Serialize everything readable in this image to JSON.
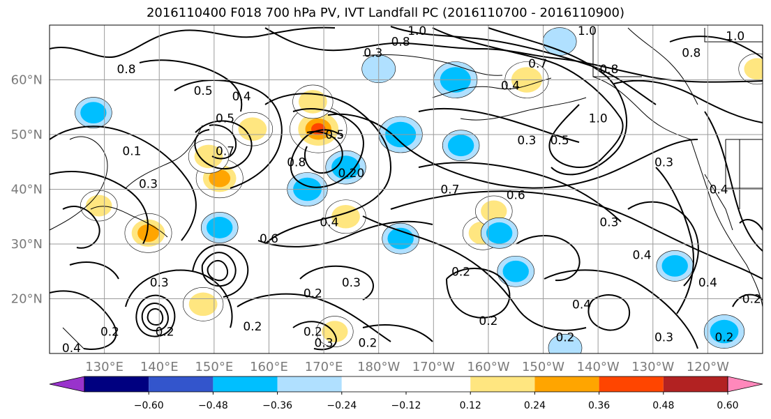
{
  "title": "2016110400 F018 700 hPa PV, IVT Landfall PC (2016110700 - 2016110900)",
  "map": {
    "lon_range": [
      120,
      250
    ],
    "lat_range": [
      10,
      70
    ],
    "lat_ticks": [
      {
        "value": 20,
        "label": "20°N"
      },
      {
        "value": 30,
        "label": "30°N"
      },
      {
        "value": 40,
        "label": "40°N"
      },
      {
        "value": 50,
        "label": "50°N"
      },
      {
        "value": 60,
        "label": "60°N"
      }
    ],
    "lon_ticks": [
      {
        "value": 130,
        "label": "130°E"
      },
      {
        "value": 140,
        "label": "140°E"
      },
      {
        "value": 150,
        "label": "150°E"
      },
      {
        "value": 160,
        "label": "160°E"
      },
      {
        "value": 170,
        "label": "170°E"
      },
      {
        "value": 180,
        "label": "180°W"
      },
      {
        "value": 190,
        "label": "170°W"
      },
      {
        "value": 200,
        "label": "160°W"
      },
      {
        "value": 210,
        "label": "150°W"
      },
      {
        "value": 220,
        "label": "140°W"
      },
      {
        "value": 230,
        "label": "130°W"
      },
      {
        "value": 240,
        "label": "120°W"
      }
    ],
    "gridlines": true,
    "contour_labels": [
      {
        "text": "0.8",
        "lon": 134,
        "lat": 62
      },
      {
        "text": "0.5",
        "lon": 148,
        "lat": 58
      },
      {
        "text": "0.4",
        "lon": 155,
        "lat": 57
      },
      {
        "text": "0.5",
        "lon": 152,
        "lat": 53
      },
      {
        "text": "0.1",
        "lon": 135,
        "lat": 47
      },
      {
        "text": "0.7",
        "lon": 152,
        "lat": 47
      },
      {
        "text": "0.3",
        "lon": 138,
        "lat": 41
      },
      {
        "text": "0.5",
        "lon": 172,
        "lat": 50
      },
      {
        "text": "0.8",
        "lon": 165,
        "lat": 45
      },
      {
        "text": "0.20",
        "lon": 175,
        "lat": 43
      },
      {
        "text": "1.0",
        "lon": 187,
        "lat": 69
      },
      {
        "text": "0.8",
        "lon": 184,
        "lat": 67
      },
      {
        "text": "0.3",
        "lon": 179,
        "lat": 65
      },
      {
        "text": "0.7",
        "lon": 209,
        "lat": 63
      },
      {
        "text": "0.4",
        "lon": 204,
        "lat": 59
      },
      {
        "text": "1.0",
        "lon": 218,
        "lat": 69
      },
      {
        "text": "0.8",
        "lon": 237,
        "lat": 65
      },
      {
        "text": "1.0",
        "lon": 245,
        "lat": 68
      },
      {
        "text": "0.8",
        "lon": 222,
        "lat": 62
      },
      {
        "text": "1.0",
        "lon": 220,
        "lat": 53
      },
      {
        "text": "0.5",
        "lon": 213,
        "lat": 49
      },
      {
        "text": "0.3",
        "lon": 207,
        "lat": 49
      },
      {
        "text": "0.3",
        "lon": 232,
        "lat": 45
      },
      {
        "text": "0.4",
        "lon": 242,
        "lat": 40
      },
      {
        "text": "0.7",
        "lon": 193,
        "lat": 40
      },
      {
        "text": "0.6",
        "lon": 205,
        "lat": 39
      },
      {
        "text": "0.4",
        "lon": 171,
        "lat": 34
      },
      {
        "text": "0.6",
        "lon": 160,
        "lat": 31
      },
      {
        "text": "0.3",
        "lon": 222,
        "lat": 34
      },
      {
        "text": "0.4",
        "lon": 228,
        "lat": 28
      },
      {
        "text": "0.4",
        "lon": 240,
        "lat": 23
      },
      {
        "text": "0.3",
        "lon": 140,
        "lat": 23
      },
      {
        "text": "0.2",
        "lon": 168,
        "lat": 21
      },
      {
        "text": "0.3",
        "lon": 175,
        "lat": 23
      },
      {
        "text": "0.2",
        "lon": 195,
        "lat": 25
      },
      {
        "text": "0.4",
        "lon": 217,
        "lat": 19
      },
      {
        "text": "0.2",
        "lon": 248,
        "lat": 20
      },
      {
        "text": "0.2",
        "lon": 131,
        "lat": 14
      },
      {
        "text": "0.2",
        "lon": 157,
        "lat": 15
      },
      {
        "text": "0.2",
        "lon": 168,
        "lat": 14
      },
      {
        "text": "0.3",
        "lon": 170,
        "lat": 12
      },
      {
        "text": "0.2",
        "lon": 178,
        "lat": 12
      },
      {
        "text": "0.2",
        "lon": 200,
        "lat": 16
      },
      {
        "text": "0.2",
        "lon": 214,
        "lat": 13
      },
      {
        "text": "0.3",
        "lon": 232,
        "lat": 13
      },
      {
        "text": "0.2",
        "lon": 243,
        "lat": 13
      },
      {
        "text": "0.4",
        "lon": 124,
        "lat": 11
      },
      {
        "text": "0.2",
        "lon": 141,
        "lat": 14
      }
    ]
  },
  "colorbar": {
    "colors": [
      "#9933cc",
      "#000080",
      "#3355cc",
      "#00bfff",
      "#b0e0ff",
      "#ffffff",
      "#ffffff",
      "#ffe680",
      "#ffa500",
      "#ff4500",
      "#b22222",
      "#ff88bb"
    ],
    "ticks": [
      "−0.60",
      "−0.48",
      "−0.36",
      "−0.24",
      "−0.12",
      "0.12",
      "0.24",
      "0.36",
      "0.48",
      "0.60"
    ]
  },
  "chart_data": {
    "type": "heatmap",
    "title": "2016110400 F018 700 hPa PV, IVT Landfall PC (2016110700 - 2016110900)",
    "xlabel": "",
    "ylabel": "",
    "xlim": [
      120,
      250
    ],
    "ylim": [
      10,
      70
    ],
    "color_levels": [
      -0.6,
      -0.48,
      -0.36,
      -0.24,
      -0.12,
      0.12,
      0.24,
      0.36,
      0.48,
      0.6
    ],
    "positive_anomalies": [
      {
        "lon": 169,
        "lat": 51,
        "value": 0.55
      },
      {
        "lon": 168,
        "lat": 56,
        "value": 0.3
      },
      {
        "lon": 151,
        "lat": 42,
        "value": 0.4
      },
      {
        "lon": 149,
        "lat": 46,
        "value": 0.3
      },
      {
        "lon": 138,
        "lat": 32,
        "value": 0.4
      },
      {
        "lon": 157,
        "lat": 51,
        "value": 0.3
      },
      {
        "lon": 207,
        "lat": 60,
        "value": 0.35
      },
      {
        "lon": 199,
        "lat": 32,
        "value": 0.3
      },
      {
        "lon": 174,
        "lat": 35,
        "value": 0.3
      },
      {
        "lon": 129,
        "lat": 37,
        "value": 0.25
      },
      {
        "lon": 148,
        "lat": 19,
        "value": 0.3
      },
      {
        "lon": 172,
        "lat": 14,
        "value": 0.25
      },
      {
        "lon": 201,
        "lat": 36,
        "value": 0.25
      },
      {
        "lon": 249,
        "lat": 62,
        "value": 0.25
      }
    ],
    "negative_anomalies": [
      {
        "lon": 184,
        "lat": 50,
        "value": -0.35
      },
      {
        "lon": 167,
        "lat": 40,
        "value": -0.3
      },
      {
        "lon": 174,
        "lat": 44,
        "value": -0.3
      },
      {
        "lon": 194,
        "lat": 60,
        "value": -0.35
      },
      {
        "lon": 195,
        "lat": 48,
        "value": -0.25
      },
      {
        "lon": 128,
        "lat": 54,
        "value": -0.25
      },
      {
        "lon": 151,
        "lat": 33,
        "value": -0.25
      },
      {
        "lon": 180,
        "lat": 62,
        "value": -0.2
      },
      {
        "lon": 184,
        "lat": 31,
        "value": -0.25
      },
      {
        "lon": 205,
        "lat": 25,
        "value": -0.25
      },
      {
        "lon": 234,
        "lat": 26,
        "value": -0.25
      },
      {
        "lon": 243,
        "lat": 14,
        "value": -0.3
      },
      {
        "lon": 214,
        "lat": 11,
        "value": -0.2
      },
      {
        "lon": 202,
        "lat": 32,
        "value": -0.25
      },
      {
        "lon": 213,
        "lat": 67,
        "value": -0.2
      }
    ]
  }
}
